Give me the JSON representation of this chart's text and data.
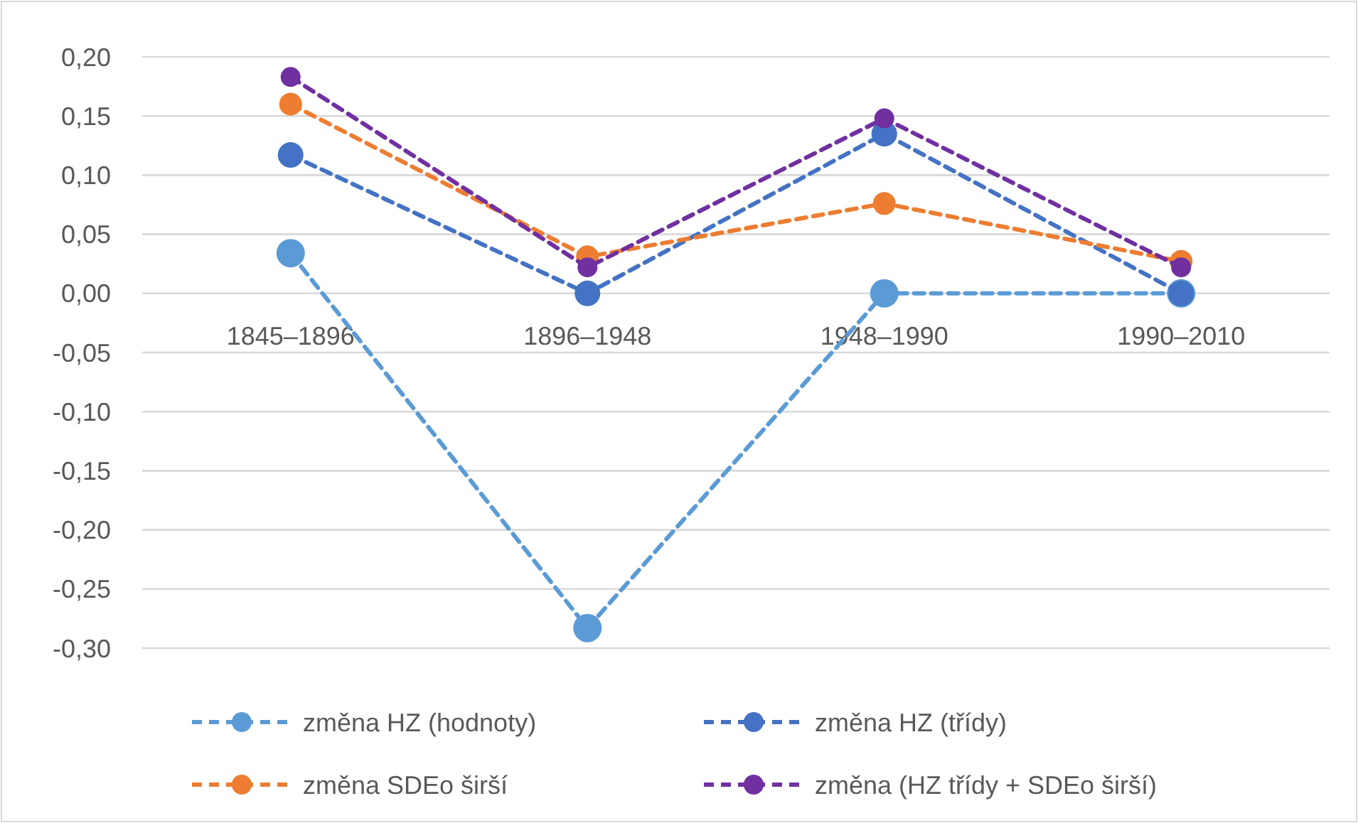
{
  "chart_data": {
    "type": "line",
    "categories": [
      "1845–1896",
      "1896–1948",
      "1948–1990",
      "1990–2010"
    ],
    "series": [
      {
        "name": "změna HZ (hodnoty)",
        "color": "#5b9bd5",
        "values": [
          0.034,
          -0.283,
          0,
          0
        ]
      },
      {
        "name": "změna HZ (třídy)",
        "color": "#4472c4",
        "values": [
          0.117,
          0,
          0.135,
          0
        ]
      },
      {
        "name": "změna SDEo širší",
        "color": "#ed7d31",
        "values": [
          0.16,
          0.031,
          0.076,
          0.027
        ]
      },
      {
        "name": "změna (HZ třídy + SDEo širší)",
        "color": "#7030a0",
        "values": [
          0.183,
          0.022,
          0.148,
          0.022
        ]
      }
    ],
    "ylim": [
      -0.3,
      0.2
    ],
    "yticks": [
      {
        "value": -0.3,
        "label": "-0,30"
      },
      {
        "value": -0.25,
        "label": "-0,25"
      },
      {
        "value": -0.2,
        "label": "-0,20"
      },
      {
        "value": -0.15,
        "label": "-0,15"
      },
      {
        "value": -0.1,
        "label": "-0,10"
      },
      {
        "value": -0.05,
        "label": "-0,05"
      },
      {
        "value": 0,
        "label": "0,00"
      },
      {
        "value": 0.05,
        "label": "0,05"
      },
      {
        "value": 0.1,
        "label": "0,10"
      },
      {
        "value": 0.15,
        "label": "0,15"
      },
      {
        "value": 0.2,
        "label": "0,20"
      }
    ],
    "grid": "y",
    "legend": "bottom",
    "marker": "circle",
    "line_style": "dashed"
  }
}
